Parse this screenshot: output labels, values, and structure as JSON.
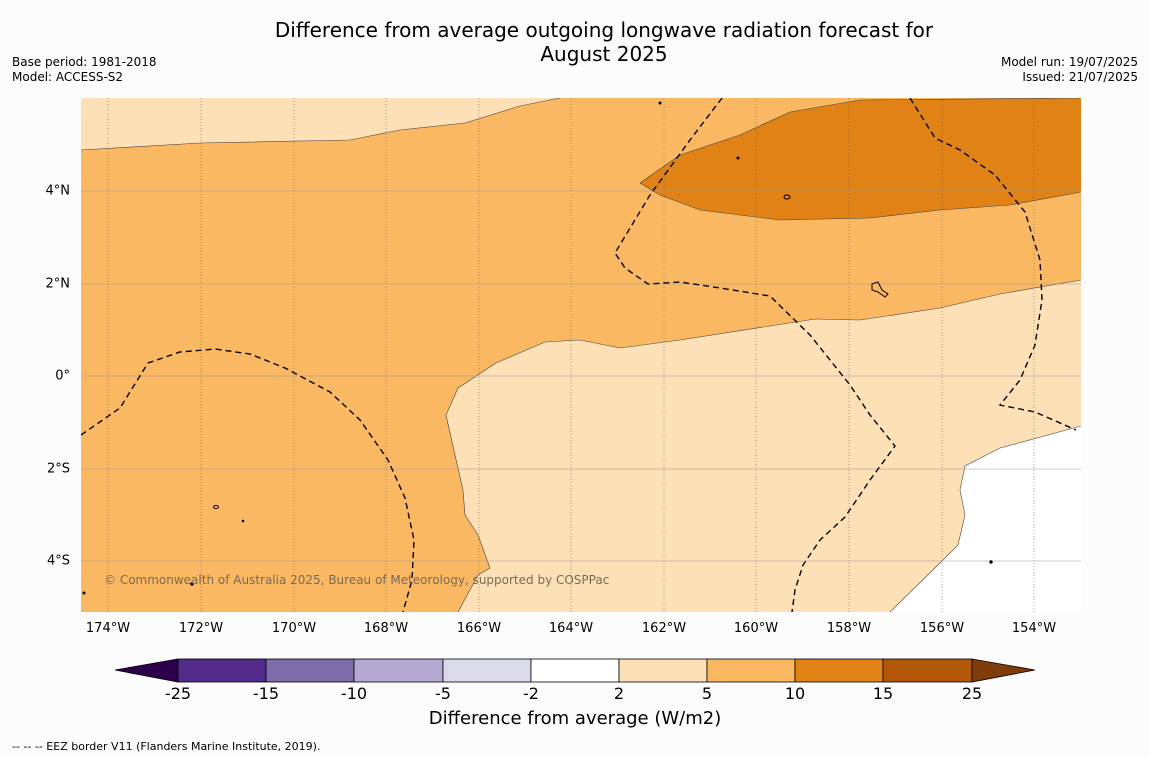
{
  "title_line1": "Difference from average outgoing longwave radiation forecast for",
  "title_line2": "August 2025",
  "base_period": "Base period: 1981-2018",
  "model": "Model: ACCESS-S2",
  "model_run": "Model run: 19/07/2025",
  "issued": "Issued: 21/07/2025",
  "copyright": "© Commonwealth of Australia 2025, Bureau of Meteorology, supported by COSPPac",
  "lon_labels": [
    "174°W",
    "172°W",
    "170°W",
    "168°W",
    "166°W",
    "164°W",
    "162°W",
    "160°W",
    "158°W",
    "156°W",
    "154°W"
  ],
  "lat_labels": [
    "4°N",
    "2°N",
    "0°",
    "2°S",
    "4°S"
  ],
  "colorbar": {
    "label": "Difference from average (W/m2)",
    "ticks": [
      "-25",
      "-15",
      "-10",
      "-5",
      "-2",
      "2",
      "5",
      "10",
      "15",
      "25"
    ],
    "colors": [
      "#522a89",
      "#7d6ca9",
      "#b3a9d2",
      "#dadaeb",
      "#ffffff",
      "#fde0b6",
      "#fbb863",
      "#e08215",
      "#b35806"
    ],
    "extend_low_color": "#2d004b",
    "extend_high_color": "#7f3b08"
  },
  "footer": "--  --  -- EEZ border V11 (Flanders Marine Institute, 2019)."
}
